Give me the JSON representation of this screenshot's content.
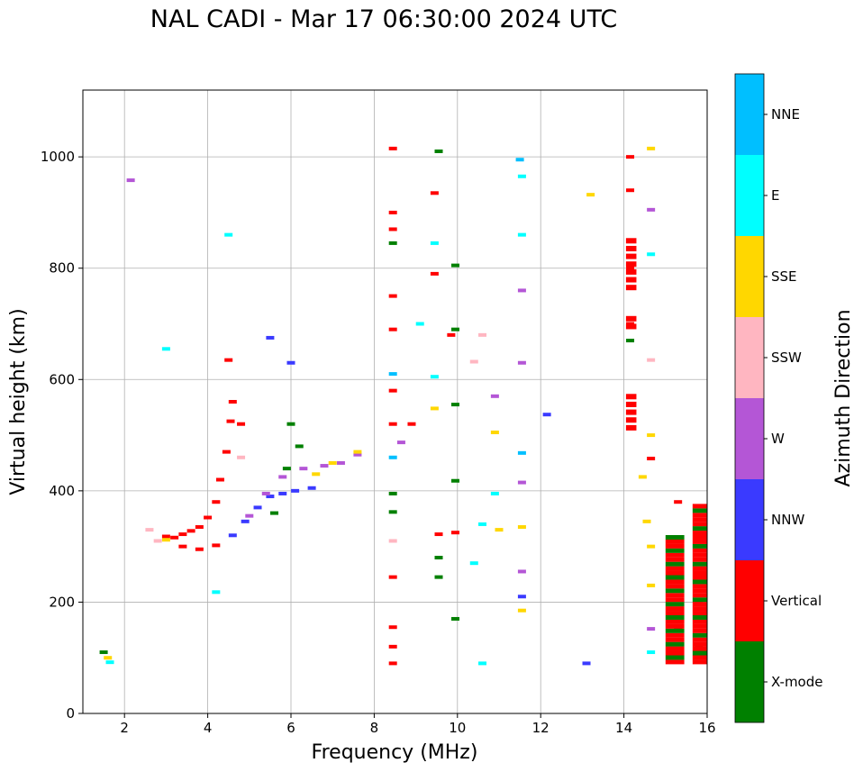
{
  "chart_data": {
    "type": "scatter",
    "title": "NAL CADI - Mar 17 06:30:00 2024 UTC",
    "xlabel": "Frequency (MHz)",
    "ylabel": "Virtual height (km)",
    "xlim": [
      1,
      16
    ],
    "ylim": [
      0,
      1120
    ],
    "xticks": [
      2,
      4,
      6,
      8,
      10,
      12,
      14,
      16
    ],
    "yticks": [
      0,
      200,
      400,
      600,
      800,
      1000
    ],
    "grid": true,
    "colorbar": {
      "label": "Azimuth Direction",
      "categories": [
        {
          "name": "X-mode",
          "color": "#008000"
        },
        {
          "name": "Vertical",
          "color": "#ff0000"
        },
        {
          "name": "NNW",
          "color": "#3a3aff"
        },
        {
          "name": "W",
          "color": "#b456d6"
        },
        {
          "name": "SSW",
          "color": "#ffb6c1"
        },
        {
          "name": "SSE",
          "color": "#ffd700"
        },
        {
          "name": "E",
          "color": "#00ffff"
        },
        {
          "name": "NNE",
          "color": "#00bfff"
        }
      ]
    },
    "echoes": [
      {
        "cat": "Vertical",
        "f": 3.0,
        "h": 318
      },
      {
        "cat": "Vertical",
        "f": 3.2,
        "h": 316
      },
      {
        "cat": "Vertical",
        "f": 3.4,
        "h": 322
      },
      {
        "cat": "Vertical",
        "f": 3.6,
        "h": 328
      },
      {
        "cat": "Vertical",
        "f": 3.8,
        "h": 335
      },
      {
        "cat": "Vertical",
        "f": 4.0,
        "h": 352
      },
      {
        "cat": "Vertical",
        "f": 4.2,
        "h": 380
      },
      {
        "cat": "Vertical",
        "f": 4.3,
        "h": 420
      },
      {
        "cat": "Vertical",
        "f": 4.45,
        "h": 470
      },
      {
        "cat": "Vertical",
        "f": 4.55,
        "h": 525
      },
      {
        "cat": "Vertical",
        "f": 4.6,
        "h": 560
      },
      {
        "cat": "Vertical",
        "f": 4.5,
        "h": 635
      },
      {
        "cat": "Vertical",
        "f": 4.8,
        "h": 520
      },
      {
        "cat": "Vertical",
        "f": 3.4,
        "h": 300
      },
      {
        "cat": "Vertical",
        "f": 3.8,
        "h": 295
      },
      {
        "cat": "Vertical",
        "f": 4.2,
        "h": 302
      },
      {
        "cat": "NNW",
        "f": 4.6,
        "h": 320
      },
      {
        "cat": "NNW",
        "f": 4.9,
        "h": 345
      },
      {
        "cat": "NNW",
        "f": 5.2,
        "h": 370
      },
      {
        "cat": "NNW",
        "f": 5.5,
        "h": 390
      },
      {
        "cat": "NNW",
        "f": 5.8,
        "h": 395
      },
      {
        "cat": "NNW",
        "f": 6.1,
        "h": 400
      },
      {
        "cat": "NNW",
        "f": 6.5,
        "h": 405
      },
      {
        "cat": "NNW",
        "f": 5.5,
        "h": 675
      },
      {
        "cat": "NNW",
        "f": 6.0,
        "h": 630
      },
      {
        "cat": "W",
        "f": 5.0,
        "h": 355
      },
      {
        "cat": "W",
        "f": 5.4,
        "h": 395
      },
      {
        "cat": "W",
        "f": 5.8,
        "h": 425
      },
      {
        "cat": "W",
        "f": 6.3,
        "h": 440
      },
      {
        "cat": "W",
        "f": 6.8,
        "h": 445
      },
      {
        "cat": "W",
        "f": 7.2,
        "h": 450
      },
      {
        "cat": "W",
        "f": 7.6,
        "h": 465
      },
      {
        "cat": "X-mode",
        "f": 5.6,
        "h": 360
      },
      {
        "cat": "X-mode",
        "f": 5.9,
        "h": 440
      },
      {
        "cat": "X-mode",
        "f": 6.2,
        "h": 480
      },
      {
        "cat": "X-mode",
        "f": 6.0,
        "h": 520
      },
      {
        "cat": "SSE",
        "f": 6.6,
        "h": 430
      },
      {
        "cat": "SSE",
        "f": 7.0,
        "h": 450
      },
      {
        "cat": "SSE",
        "f": 7.6,
        "h": 470
      },
      {
        "cat": "SSE",
        "f": 3.0,
        "h": 312
      },
      {
        "cat": "SSW",
        "f": 2.6,
        "h": 330
      },
      {
        "cat": "SSW",
        "f": 2.8,
        "h": 310
      },
      {
        "cat": "SSW",
        "f": 4.8,
        "h": 460
      },
      {
        "cat": "E",
        "f": 3.0,
        "h": 655
      },
      {
        "cat": "E",
        "f": 4.5,
        "h": 860
      },
      {
        "cat": "E",
        "f": 4.2,
        "h": 218
      },
      {
        "cat": "X-mode",
        "f": 1.5,
        "h": 110
      },
      {
        "cat": "SSE",
        "f": 1.6,
        "h": 100
      },
      {
        "cat": "E",
        "f": 1.65,
        "h": 92
      },
      {
        "cat": "W",
        "f": 2.15,
        "h": 958
      },
      {
        "cat": "Vertical",
        "f": 8.45,
        "h": 1015
      },
      {
        "cat": "Vertical",
        "f": 8.45,
        "h": 900
      },
      {
        "cat": "Vertical",
        "f": 8.45,
        "h": 870
      },
      {
        "cat": "X-mode",
        "f": 8.45,
        "h": 845
      },
      {
        "cat": "Vertical",
        "f": 8.45,
        "h": 750
      },
      {
        "cat": "Vertical",
        "f": 8.45,
        "h": 690
      },
      {
        "cat": "NNE",
        "f": 8.45,
        "h": 610
      },
      {
        "cat": "Vertical",
        "f": 8.45,
        "h": 580
      },
      {
        "cat": "Vertical",
        "f": 8.45,
        "h": 520
      },
      {
        "cat": "NNE",
        "f": 8.45,
        "h": 460
      },
      {
        "cat": "X-mode",
        "f": 8.45,
        "h": 395
      },
      {
        "cat": "X-mode",
        "f": 8.45,
        "h": 362
      },
      {
        "cat": "SSW",
        "f": 8.45,
        "h": 310
      },
      {
        "cat": "Vertical",
        "f": 8.45,
        "h": 245
      },
      {
        "cat": "Vertical",
        "f": 8.45,
        "h": 155
      },
      {
        "cat": "Vertical",
        "f": 8.45,
        "h": 120
      },
      {
        "cat": "Vertical",
        "f": 8.45,
        "h": 90
      },
      {
        "cat": "W",
        "f": 8.65,
        "h": 487
      },
      {
        "cat": "Vertical",
        "f": 8.9,
        "h": 520
      },
      {
        "cat": "E",
        "f": 9.1,
        "h": 700
      },
      {
        "cat": "X-mode",
        "f": 9.55,
        "h": 1010
      },
      {
        "cat": "Vertical",
        "f": 9.45,
        "h": 935
      },
      {
        "cat": "E",
        "f": 9.45,
        "h": 845
      },
      {
        "cat": "Vertical",
        "f": 9.45,
        "h": 790
      },
      {
        "cat": "E",
        "f": 9.45,
        "h": 605
      },
      {
        "cat": "SSE",
        "f": 9.45,
        "h": 548
      },
      {
        "cat": "Vertical",
        "f": 9.55,
        "h": 322
      },
      {
        "cat": "X-mode",
        "f": 9.55,
        "h": 280
      },
      {
        "cat": "X-mode",
        "f": 9.55,
        "h": 245
      },
      {
        "cat": "X-mode",
        "f": 9.95,
        "h": 805
      },
      {
        "cat": "X-mode",
        "f": 9.95,
        "h": 690
      },
      {
        "cat": "X-mode",
        "f": 9.95,
        "h": 555
      },
      {
        "cat": "X-mode",
        "f": 9.95,
        "h": 418
      },
      {
        "cat": "Vertical",
        "f": 9.95,
        "h": 325
      },
      {
        "cat": "X-mode",
        "f": 9.95,
        "h": 170
      },
      {
        "cat": "Vertical",
        "f": 9.85,
        "h": 680
      },
      {
        "cat": "SSW",
        "f": 10.4,
        "h": 632
      },
      {
        "cat": "E",
        "f": 10.4,
        "h": 270
      },
      {
        "cat": "E",
        "f": 10.6,
        "h": 340
      },
      {
        "cat": "SSW",
        "f": 10.6,
        "h": 680
      },
      {
        "cat": "W",
        "f": 10.9,
        "h": 570
      },
      {
        "cat": "SSE",
        "f": 10.9,
        "h": 505
      },
      {
        "cat": "E",
        "f": 10.9,
        "h": 395
      },
      {
        "cat": "SSE",
        "f": 11.0,
        "h": 330
      },
      {
        "cat": "E",
        "f": 10.6,
        "h": 90
      },
      {
        "cat": "NNE",
        "f": 11.5,
        "h": 995
      },
      {
        "cat": "E",
        "f": 11.55,
        "h": 965
      },
      {
        "cat": "E",
        "f": 11.55,
        "h": 860
      },
      {
        "cat": "W",
        "f": 11.55,
        "h": 760
      },
      {
        "cat": "W",
        "f": 11.55,
        "h": 630
      },
      {
        "cat": "NNE",
        "f": 11.55,
        "h": 468
      },
      {
        "cat": "W",
        "f": 11.55,
        "h": 415
      },
      {
        "cat": "SSE",
        "f": 11.55,
        "h": 335
      },
      {
        "cat": "W",
        "f": 11.55,
        "h": 255
      },
      {
        "cat": "NNW",
        "f": 11.55,
        "h": 210
      },
      {
        "cat": "SSE",
        "f": 11.55,
        "h": 185
      },
      {
        "cat": "NNW",
        "f": 12.15,
        "h": 537
      },
      {
        "cat": "SSE",
        "f": 13.2,
        "h": 932
      },
      {
        "cat": "NNW",
        "f": 13.1,
        "h": 90
      },
      {
        "cat": "Vertical",
        "f": 14.15,
        "h": 1000
      },
      {
        "cat": "Vertical",
        "f": 14.15,
        "h": 940
      },
      {
        "cat": "Vertical",
        "f": 14.15,
        "h": 800
      },
      {
        "cat": "Vertical",
        "f": 14.15,
        "h": 700
      },
      {
        "cat": "Vertical",
        "f": 14.15,
        "h": 540
      },
      {
        "cat": "X-mode",
        "f": 14.15,
        "h": 555
      },
      {
        "cat": "X-mode",
        "f": 14.15,
        "h": 670
      },
      {
        "cat": "SSE",
        "f": 14.65,
        "h": 1015
      },
      {
        "cat": "W",
        "f": 14.65,
        "h": 905
      },
      {
        "cat": "E",
        "f": 14.65,
        "h": 825
      },
      {
        "cat": "SSW",
        "f": 14.65,
        "h": 635
      },
      {
        "cat": "SSE",
        "f": 14.65,
        "h": 500
      },
      {
        "cat": "Vertical",
        "f": 14.65,
        "h": 458
      },
      {
        "cat": "SSE",
        "f": 14.45,
        "h": 425
      },
      {
        "cat": "SSE",
        "f": 14.55,
        "h": 345
      },
      {
        "cat": "SSE",
        "f": 14.65,
        "h": 300
      },
      {
        "cat": "SSE",
        "f": 14.65,
        "h": 230
      },
      {
        "cat": "W",
        "f": 14.65,
        "h": 152
      },
      {
        "cat": "E",
        "f": 14.65,
        "h": 110
      },
      {
        "cat": "Vertical",
        "f": 15.3,
        "h": 380
      },
      {
        "cat": "Vertical",
        "f": 15.3,
        "h": 250
      },
      {
        "cat": "X-mode",
        "f": 15.3,
        "h": 150
      },
      {
        "cat": "Vertical",
        "f": 15.8,
        "h": 300
      },
      {
        "cat": "Vertical",
        "f": 15.8,
        "h": 200
      },
      {
        "cat": "X-mode",
        "f": 15.8,
        "h": 120
      }
    ]
  }
}
